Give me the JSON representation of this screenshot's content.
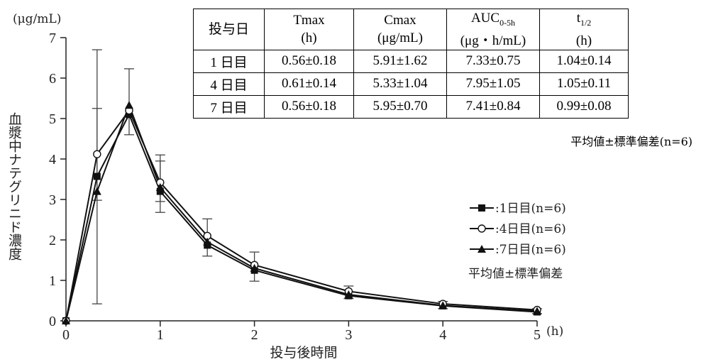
{
  "chart_data": {
    "type": "line",
    "ylabel": "血漿中ナテグリニド濃度",
    "y_unit": "(μg/mL)",
    "xlabel": "投与後時間",
    "x_unit": "(h)",
    "x_ticks": [
      "0",
      "1",
      "2",
      "3",
      "4",
      "5"
    ],
    "y_ticks": [
      "0",
      "1",
      "2",
      "3",
      "4",
      "5",
      "6",
      "7"
    ],
    "xlim": [
      0,
      5
    ],
    "ylim": [
      0,
      7
    ],
    "legend_position": "right",
    "legend_note": "平均値±標準偏差",
    "series": [
      {
        "name": ":1日目(n=6)",
        "marker": "square",
        "x": [
          0,
          0.33,
          0.67,
          1,
          1.5,
          2,
          3,
          4,
          5
        ],
        "y": [
          0,
          3.57,
          5.1,
          3.2,
          1.87,
          1.25,
          0.62,
          0.37,
          0.22
        ]
      },
      {
        "name": ":4日目(n=6)",
        "marker": "circle",
        "x": [
          0,
          0.33,
          0.67,
          1,
          1.5,
          2,
          3,
          4,
          5
        ],
        "y": [
          0,
          4.12,
          5.2,
          3.42,
          2.1,
          1.38,
          0.73,
          0.42,
          0.27
        ]
      },
      {
        "name": ":7日目(n=6)",
        "marker": "triangle",
        "x": [
          0,
          0.33,
          0.67,
          1,
          1.5,
          2,
          3,
          4,
          5
        ],
        "y": [
          0,
          3.2,
          5.33,
          3.3,
          1.95,
          1.3,
          0.65,
          0.38,
          0.24
        ]
      }
    ],
    "error_bars": [
      {
        "x": 0.33,
        "low": 0.42,
        "high": 6.7
      },
      {
        "x": 0.33,
        "low": 2.98,
        "high": 5.25
      },
      {
        "x": 0.67,
        "low": 4.6,
        "high": 6.23
      },
      {
        "x": 1,
        "low": 2.68,
        "high": 4.1
      },
      {
        "x": 1,
        "low": 2.95,
        "high": 3.95
      },
      {
        "x": 1.5,
        "low": 1.6,
        "high": 2.52
      },
      {
        "x": 2,
        "low": 0.98,
        "high": 1.7
      },
      {
        "x": 3,
        "low": 0.55,
        "high": 0.86
      },
      {
        "x": 4,
        "low": 0.3,
        "high": 0.48
      },
      {
        "x": 5,
        "low": 0.18,
        "high": 0.3
      }
    ]
  },
  "table": {
    "headers": [
      {
        "l1": "投与日",
        "l2": ""
      },
      {
        "l1": "Tmax",
        "l2": "(h)"
      },
      {
        "l1": "Cmax",
        "l2": "(μg/mL)"
      },
      {
        "l1": "AUC",
        "l1_sub": "0-5h",
        "l2": "(μg・h/mL)"
      },
      {
        "l1": "t",
        "l1_sub": "1/2",
        "l2": "(h)"
      }
    ],
    "rows": [
      [
        "1 日目",
        "0.56±0.18",
        "5.91±1.62",
        "7.33±0.75",
        "1.04±0.14"
      ],
      [
        "4 日目",
        "0.61±0.14",
        "5.33±1.04",
        "7.95±1.05",
        "1.05±0.11"
      ],
      [
        "7 日目",
        "0.56±0.18",
        "5.95±0.70",
        "7.41±0.84",
        "0.99±0.08"
      ]
    ],
    "note": "平均値±標準偏差(n=6)"
  }
}
